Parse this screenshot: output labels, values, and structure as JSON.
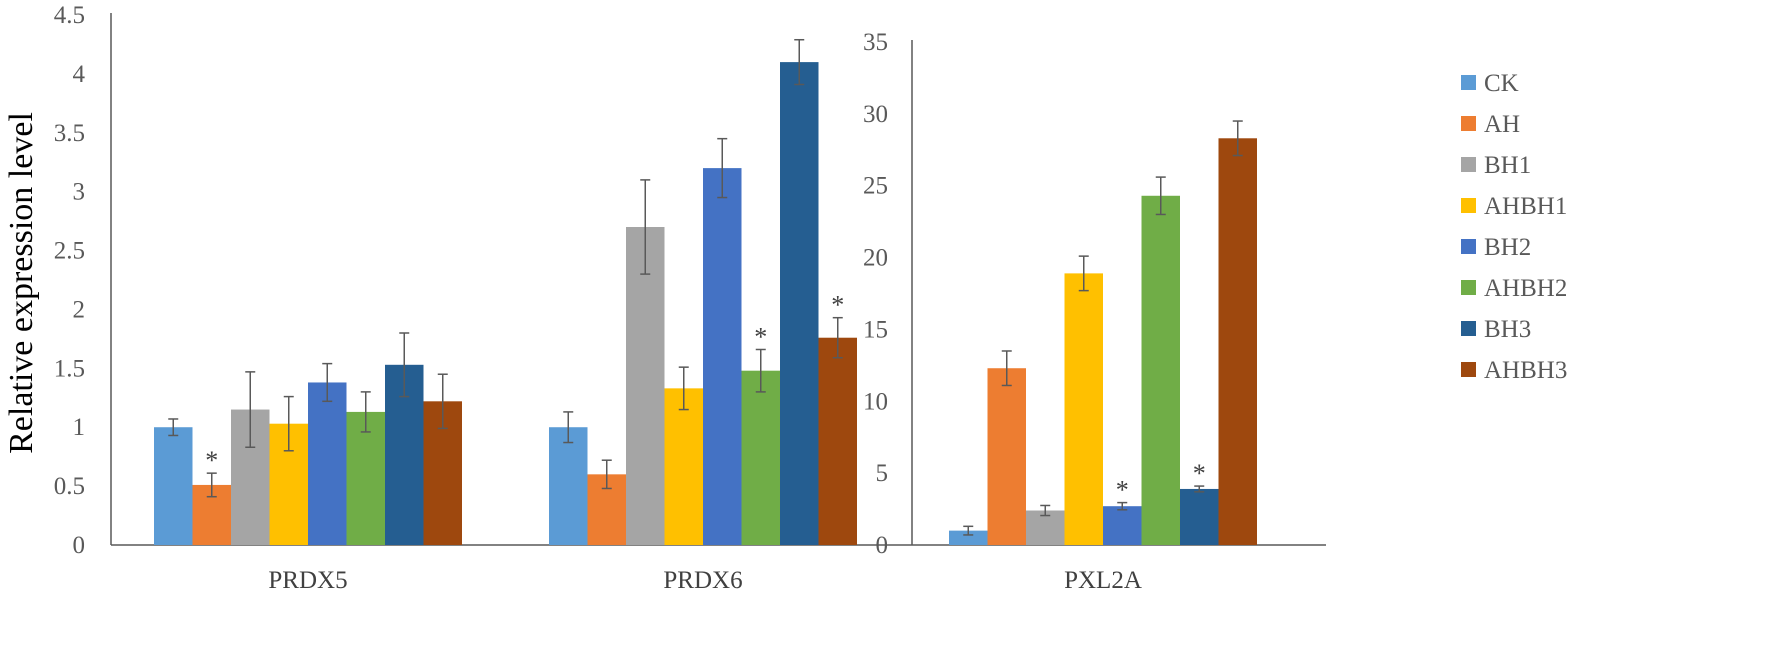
{
  "chart_data": {
    "type": "bar",
    "ylabel": "Relative expression level",
    "legend_position": "right",
    "grid": false,
    "series": [
      {
        "name": "CK",
        "color": "#5B9BD5"
      },
      {
        "name": "AH",
        "color": "#ED7D31"
      },
      {
        "name": "BH1",
        "color": "#A5A5A5"
      },
      {
        "name": "AHBH1",
        "color": "#FFC000"
      },
      {
        "name": "BH2",
        "color": "#4472C4"
      },
      {
        "name": "AHBH2",
        "color": "#70AD47"
      },
      {
        "name": "BH3",
        "color": "#255E91"
      },
      {
        "name": "AHBH3",
        "color": "#9E480E"
      }
    ],
    "axes": [
      {
        "id": "left",
        "ylim": [
          0,
          4.5
        ],
        "ticks": [
          "0",
          "0.5",
          "1",
          "1.5",
          "2",
          "2.5",
          "3",
          "3.5",
          "4",
          "4.5"
        ]
      },
      {
        "id": "right",
        "ylim": [
          0,
          35
        ],
        "ticks": [
          "0",
          "5",
          "10",
          "15",
          "20",
          "25",
          "30",
          "35"
        ]
      }
    ],
    "groups": [
      {
        "category": "PRDX5",
        "axis": "left",
        "values": [
          1.0,
          0.51,
          1.15,
          1.03,
          1.38,
          1.13,
          1.53,
          1.22
        ],
        "errors": [
          0.07,
          0.1,
          0.32,
          0.23,
          0.16,
          0.17,
          0.27,
          0.23
        ],
        "significant": [
          false,
          true,
          false,
          false,
          false,
          false,
          false,
          false
        ]
      },
      {
        "category": "PRDX6",
        "axis": "left",
        "values": [
          1.0,
          0.6,
          2.7,
          1.33,
          3.2,
          1.48,
          4.1,
          1.76
        ],
        "errors": [
          0.13,
          0.12,
          0.4,
          0.18,
          0.25,
          0.18,
          0.19,
          0.17
        ],
        "significant": [
          false,
          false,
          false,
          false,
          false,
          true,
          false,
          true
        ]
      },
      {
        "category": "PXL2A",
        "axis": "right",
        "values": [
          1.0,
          12.3,
          2.4,
          18.9,
          2.7,
          24.3,
          3.9,
          28.3
        ],
        "errors": [
          0.3,
          1.2,
          0.35,
          1.2,
          0.25,
          1.3,
          0.2,
          1.2
        ],
        "significant": [
          false,
          false,
          false,
          false,
          true,
          false,
          true,
          false
        ]
      }
    ],
    "significance_marker": "*"
  }
}
